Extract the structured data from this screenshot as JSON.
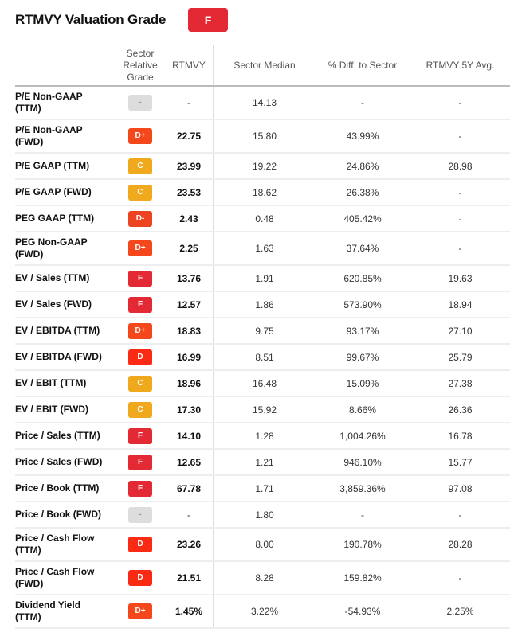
{
  "header": {
    "title": "RTMVY Valuation Grade",
    "overall_grade": "F"
  },
  "grade_colors": {
    "F": "#e32934",
    "D+": "#f4481c",
    "D": "#fa2a14",
    "D-": "#ec4420",
    "C": "#f0a81c",
    "-": "#dddddd"
  },
  "columns": [
    "",
    "Sector Relative Grade",
    "RTMVY",
    "Sector Median",
    "% Diff. to Sector",
    "RTMVY 5Y Avg."
  ],
  "rows": [
    {
      "metric": "P/E Non-GAAP (TTM)",
      "grade": "-",
      "value": "-",
      "median": "14.13",
      "diff": "-",
      "avg5y": "-",
      "two": true
    },
    {
      "metric": "P/E Non-GAAP (FWD)",
      "grade": "D+",
      "value": "22.75",
      "median": "15.80",
      "diff": "43.99%",
      "avg5y": "-",
      "two": true
    },
    {
      "metric": "P/E GAAP (TTM)",
      "grade": "C",
      "value": "23.99",
      "median": "19.22",
      "diff": "24.86%",
      "avg5y": "28.98"
    },
    {
      "metric": "P/E GAAP (FWD)",
      "grade": "C",
      "value": "23.53",
      "median": "18.62",
      "diff": "26.38%",
      "avg5y": "-"
    },
    {
      "metric": "PEG GAAP (TTM)",
      "grade": "D-",
      "value": "2.43",
      "median": "0.48",
      "diff": "405.42%",
      "avg5y": "-"
    },
    {
      "metric": "PEG Non-GAAP (FWD)",
      "grade": "D+",
      "value": "2.25",
      "median": "1.63",
      "diff": "37.64%",
      "avg5y": "-",
      "two": true
    },
    {
      "metric": "EV / Sales (TTM)",
      "grade": "F",
      "value": "13.76",
      "median": "1.91",
      "diff": "620.85%",
      "avg5y": "19.63"
    },
    {
      "metric": "EV / Sales (FWD)",
      "grade": "F",
      "value": "12.57",
      "median": "1.86",
      "diff": "573.90%",
      "avg5y": "18.94"
    },
    {
      "metric": "EV / EBITDA (TTM)",
      "grade": "D+",
      "value": "18.83",
      "median": "9.75",
      "diff": "93.17%",
      "avg5y": "27.10"
    },
    {
      "metric": "EV / EBITDA (FWD)",
      "grade": "D",
      "value": "16.99",
      "median": "8.51",
      "diff": "99.67%",
      "avg5y": "25.79"
    },
    {
      "metric": "EV / EBIT (TTM)",
      "grade": "C",
      "value": "18.96",
      "median": "16.48",
      "diff": "15.09%",
      "avg5y": "27.38"
    },
    {
      "metric": "EV / EBIT (FWD)",
      "grade": "C",
      "value": "17.30",
      "median": "15.92",
      "diff": "8.66%",
      "avg5y": "26.36"
    },
    {
      "metric": "Price / Sales (TTM)",
      "grade": "F",
      "value": "14.10",
      "median": "1.28",
      "diff": "1,004.26%",
      "avg5y": "16.78"
    },
    {
      "metric": "Price / Sales (FWD)",
      "grade": "F",
      "value": "12.65",
      "median": "1.21",
      "diff": "946.10%",
      "avg5y": "15.77"
    },
    {
      "metric": "Price / Book (TTM)",
      "grade": "F",
      "value": "67.78",
      "median": "1.71",
      "diff": "3,859.36%",
      "avg5y": "97.08"
    },
    {
      "metric": "Price / Book (FWD)",
      "grade": "-",
      "value": "-",
      "median": "1.80",
      "diff": "-",
      "avg5y": "-"
    },
    {
      "metric": "Price / Cash Flow (TTM)",
      "grade": "D",
      "value": "23.26",
      "median": "8.00",
      "diff": "190.78%",
      "avg5y": "28.28",
      "two": true
    },
    {
      "metric": "Price / Cash Flow (FWD)",
      "grade": "D",
      "value": "21.51",
      "median": "8.28",
      "diff": "159.82%",
      "avg5y": "-",
      "two": true
    },
    {
      "metric": "Dividend Yield (TTM)",
      "grade": "D+",
      "value": "1.45%",
      "median": "3.22%",
      "diff": "-54.93%",
      "avg5y": "2.25%",
      "two": true
    }
  ]
}
